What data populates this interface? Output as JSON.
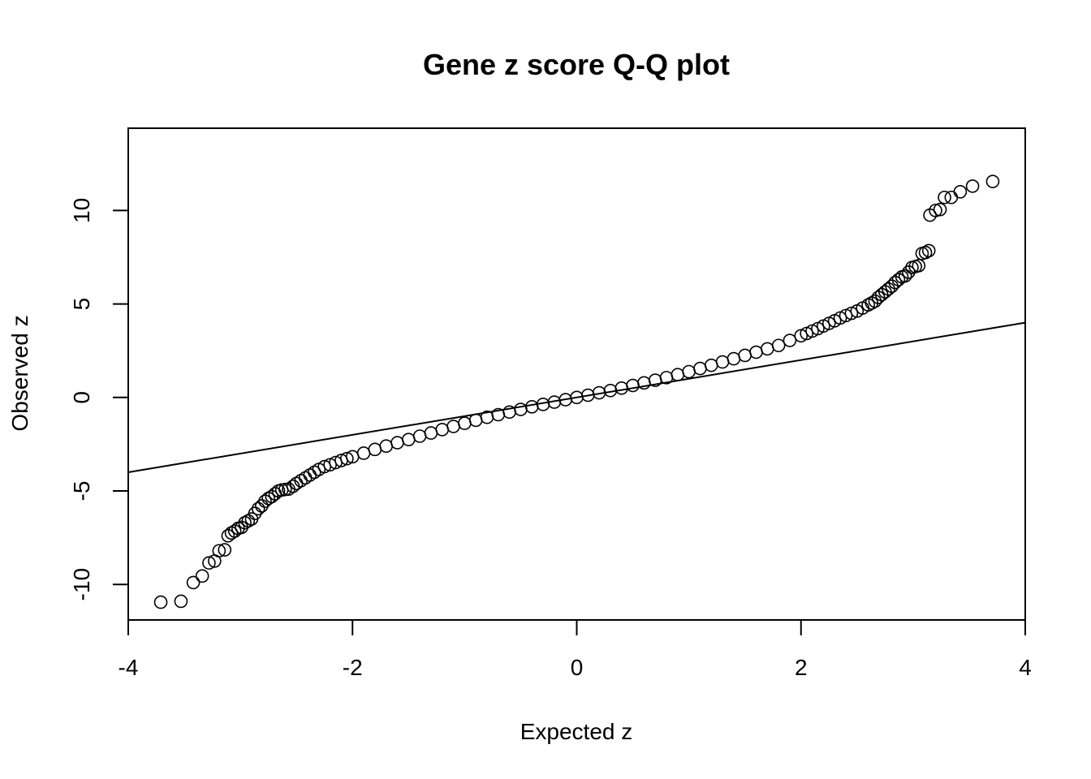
{
  "chart_data": {
    "type": "scatter",
    "title": "Gene z score Q-Q plot",
    "xlabel": "Expected z",
    "ylabel": "Observed z",
    "xlim": [
      -4,
      4
    ],
    "ylim": [
      -11.9,
      14.4
    ],
    "x_ticks": [
      -4,
      -2,
      0,
      2,
      4
    ],
    "y_ticks": [
      -10,
      -5,
      0,
      5,
      10
    ],
    "grid": false,
    "marker": "open-circle",
    "reference_line": {
      "slope": 1,
      "intercept": 0
    },
    "points": [
      [
        -3.71,
        -10.95
      ],
      [
        -3.53,
        -10.9
      ],
      [
        -3.42,
        -9.9
      ],
      [
        -3.34,
        -9.55
      ],
      [
        -3.28,
        -8.85
      ],
      [
        -3.23,
        -8.75
      ],
      [
        -3.19,
        -8.2
      ],
      [
        -3.14,
        -8.15
      ],
      [
        -3.11,
        -7.4
      ],
      [
        -3.08,
        -7.25
      ],
      [
        -3.05,
        -7.15
      ],
      [
        -3.02,
        -7.0
      ],
      [
        -2.99,
        -6.95
      ],
      [
        -2.96,
        -6.7
      ],
      [
        -2.93,
        -6.6
      ],
      [
        -2.9,
        -6.5
      ],
      [
        -2.87,
        -6.2
      ],
      [
        -2.84,
        -5.95
      ],
      [
        -2.81,
        -5.8
      ],
      [
        -2.78,
        -5.55
      ],
      [
        -2.75,
        -5.4
      ],
      [
        -2.72,
        -5.3
      ],
      [
        -2.69,
        -5.15
      ],
      [
        -2.66,
        -5.0
      ],
      [
        -2.63,
        -4.95
      ],
      [
        -2.6,
        -4.92
      ],
      [
        -2.57,
        -4.9
      ],
      [
        -2.53,
        -4.75
      ],
      [
        -2.5,
        -4.6
      ],
      [
        -2.46,
        -4.45
      ],
      [
        -2.42,
        -4.3
      ],
      [
        -2.38,
        -4.15
      ],
      [
        -2.34,
        -4.0
      ],
      [
        -2.3,
        -3.85
      ],
      [
        -2.25,
        -3.7
      ],
      [
        -2.2,
        -3.6
      ],
      [
        -2.15,
        -3.48
      ],
      [
        -2.1,
        -3.37
      ],
      [
        -2.05,
        -3.27
      ],
      [
        -2.0,
        -3.17
      ],
      [
        -1.9,
        -2.98
      ],
      [
        -1.8,
        -2.78
      ],
      [
        -1.7,
        -2.6
      ],
      [
        -1.6,
        -2.42
      ],
      [
        -1.5,
        -2.25
      ],
      [
        -1.4,
        -2.07
      ],
      [
        -1.3,
        -1.9
      ],
      [
        -1.2,
        -1.72
      ],
      [
        -1.1,
        -1.55
      ],
      [
        -1.0,
        -1.38
      ],
      [
        -0.9,
        -1.22
      ],
      [
        -0.8,
        -1.06
      ],
      [
        -0.7,
        -0.92
      ],
      [
        -0.6,
        -0.78
      ],
      [
        -0.5,
        -0.64
      ],
      [
        -0.4,
        -0.5
      ],
      [
        -0.3,
        -0.37
      ],
      [
        -0.2,
        -0.25
      ],
      [
        -0.1,
        -0.12
      ],
      [
        0.0,
        0.0
      ],
      [
        0.1,
        0.12
      ],
      [
        0.2,
        0.25
      ],
      [
        0.3,
        0.37
      ],
      [
        0.4,
        0.5
      ],
      [
        0.5,
        0.64
      ],
      [
        0.6,
        0.78
      ],
      [
        0.7,
        0.92
      ],
      [
        0.8,
        1.06
      ],
      [
        0.9,
        1.22
      ],
      [
        1.0,
        1.38
      ],
      [
        1.1,
        1.55
      ],
      [
        1.2,
        1.72
      ],
      [
        1.3,
        1.9
      ],
      [
        1.4,
        2.07
      ],
      [
        1.5,
        2.25
      ],
      [
        1.6,
        2.42
      ],
      [
        1.7,
        2.6
      ],
      [
        1.8,
        2.78
      ],
      [
        1.9,
        3.05
      ],
      [
        2.0,
        3.3
      ],
      [
        2.05,
        3.42
      ],
      [
        2.1,
        3.55
      ],
      [
        2.15,
        3.68
      ],
      [
        2.2,
        3.82
      ],
      [
        2.25,
        3.96
      ],
      [
        2.3,
        4.1
      ],
      [
        2.35,
        4.25
      ],
      [
        2.4,
        4.38
      ],
      [
        2.45,
        4.5
      ],
      [
        2.5,
        4.62
      ],
      [
        2.55,
        4.78
      ],
      [
        2.6,
        4.95
      ],
      [
        2.63,
        5.05
      ],
      [
        2.66,
        5.15
      ],
      [
        2.69,
        5.35
      ],
      [
        2.72,
        5.5
      ],
      [
        2.75,
        5.65
      ],
      [
        2.78,
        5.8
      ],
      [
        2.81,
        5.95
      ],
      [
        2.84,
        6.15
      ],
      [
        2.87,
        6.3
      ],
      [
        2.9,
        6.45
      ],
      [
        2.93,
        6.5
      ],
      [
        2.96,
        6.7
      ],
      [
        2.99,
        6.95
      ],
      [
        3.02,
        7.0
      ],
      [
        3.05,
        7.05
      ],
      [
        3.08,
        7.7
      ],
      [
        3.11,
        7.75
      ],
      [
        3.14,
        7.85
      ],
      [
        3.15,
        9.75
      ],
      [
        3.2,
        10.0
      ],
      [
        3.24,
        10.05
      ],
      [
        3.28,
        10.7
      ],
      [
        3.34,
        10.7
      ],
      [
        3.42,
        11.0
      ],
      [
        3.53,
        11.3
      ],
      [
        3.71,
        11.55
      ]
    ]
  }
}
